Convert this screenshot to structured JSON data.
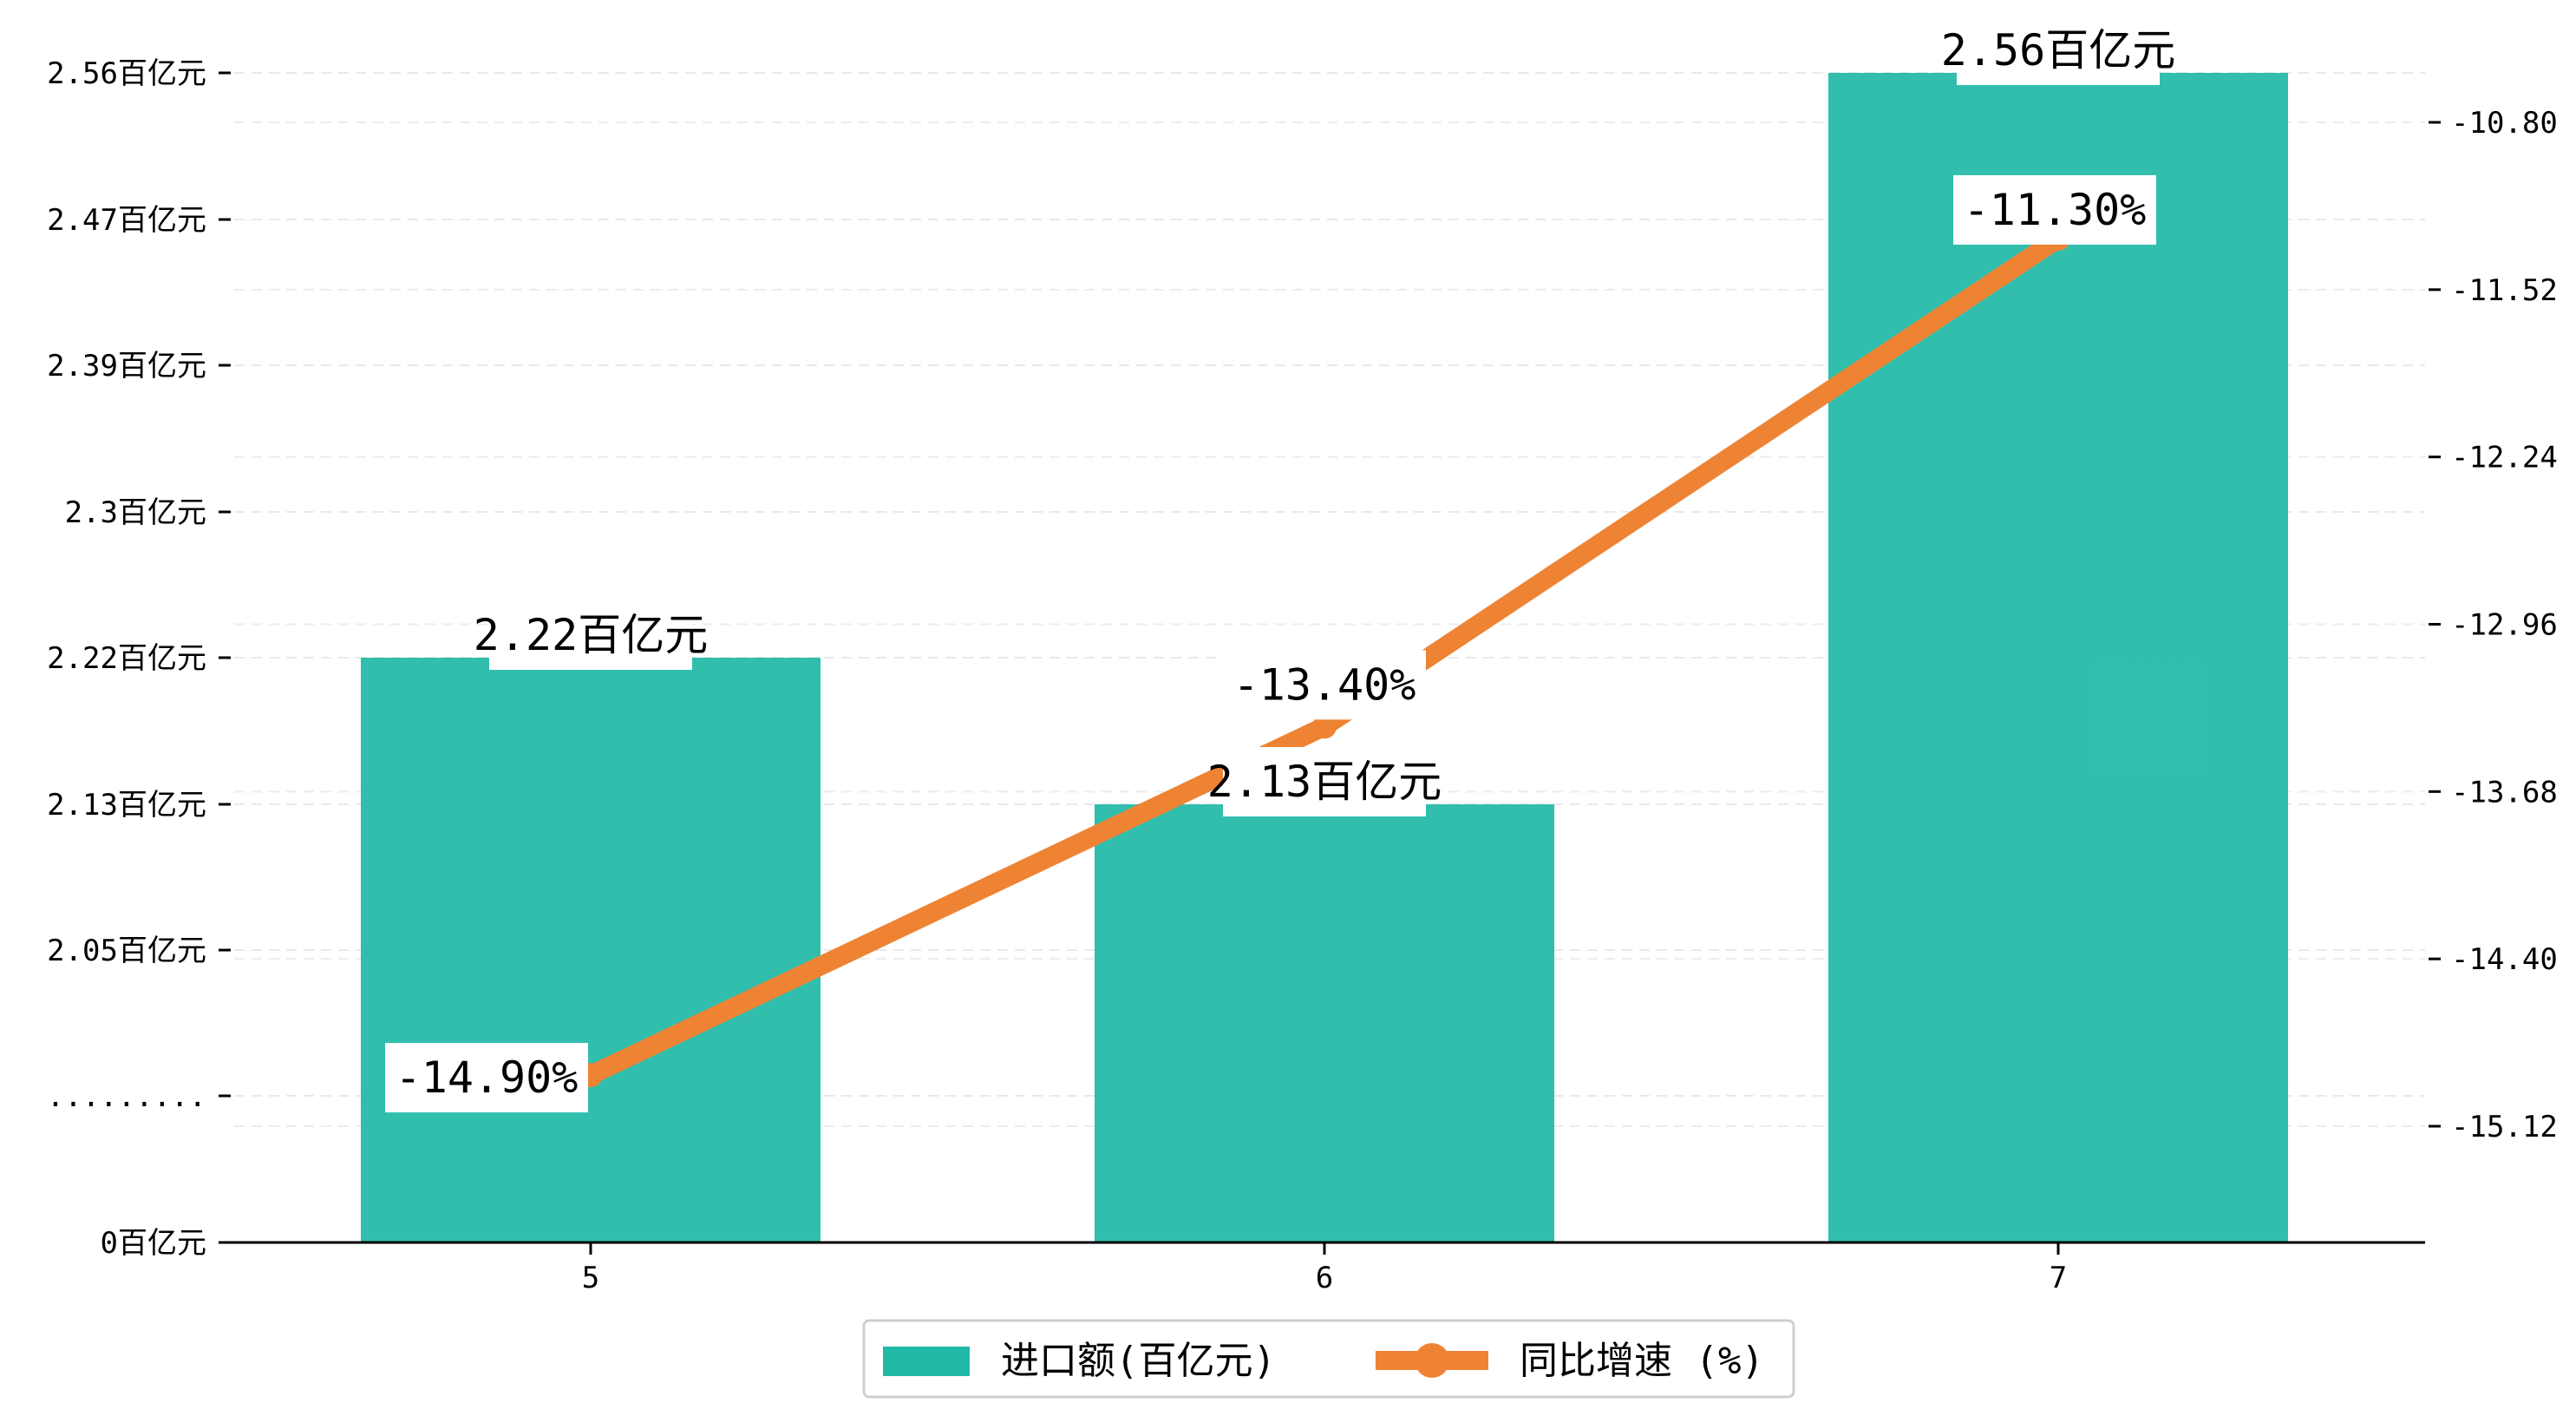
{
  "chart_data": {
    "type": "bar",
    "categories": [
      "5",
      "6",
      "7"
    ],
    "series": [
      {
        "name": "进口额(百亿元)",
        "type": "bar",
        "axis": "left",
        "values": [
          2.22,
          2.13,
          2.56
        ],
        "labels": [
          "2.22百亿元",
          "2.13百亿元",
          "2.56百亿元"
        ],
        "color": "#20b9a6"
      },
      {
        "name": "同比增速 (%)",
        "type": "line",
        "axis": "right",
        "values": [
          -14.9,
          -13.4,
          -11.3
        ],
        "labels": [
          "-14.90%",
          "-13.40%",
          "-11.30%"
        ],
        "color": "#ee8334"
      }
    ],
    "y_left": {
      "ticks": [
        {
          "value": 0,
          "label": "0百亿元"
        },
        {
          "value": null,
          "label": "........."
        },
        {
          "value": 2.05,
          "label": "2.05百亿元"
        },
        {
          "value": 2.13,
          "label": "2.13百亿元"
        },
        {
          "value": 2.22,
          "label": "2.22百亿元"
        },
        {
          "value": 2.3,
          "label": "2.3百亿元"
        },
        {
          "value": 2.39,
          "label": "2.39百亿元"
        },
        {
          "value": 2.47,
          "label": "2.47百亿元"
        },
        {
          "value": 2.56,
          "label": "2.56百亿元"
        }
      ],
      "broken_axis": true
    },
    "y_right": {
      "ticks": [
        {
          "value": -15.12,
          "label": "-15.12"
        },
        {
          "value": -14.4,
          "label": "-14.40"
        },
        {
          "value": -13.68,
          "label": "-13.68"
        },
        {
          "value": -12.96,
          "label": "-12.96"
        },
        {
          "value": -12.24,
          "label": "-12.24"
        },
        {
          "value": -11.52,
          "label": "-11.52"
        },
        {
          "value": -10.8,
          "label": "-10.80"
        }
      ],
      "range": [
        -15.6,
        -10.5
      ]
    },
    "legend_position": "bottom-center",
    "grid": true,
    "title": "",
    "xlabel": "",
    "ylabel": ""
  }
}
